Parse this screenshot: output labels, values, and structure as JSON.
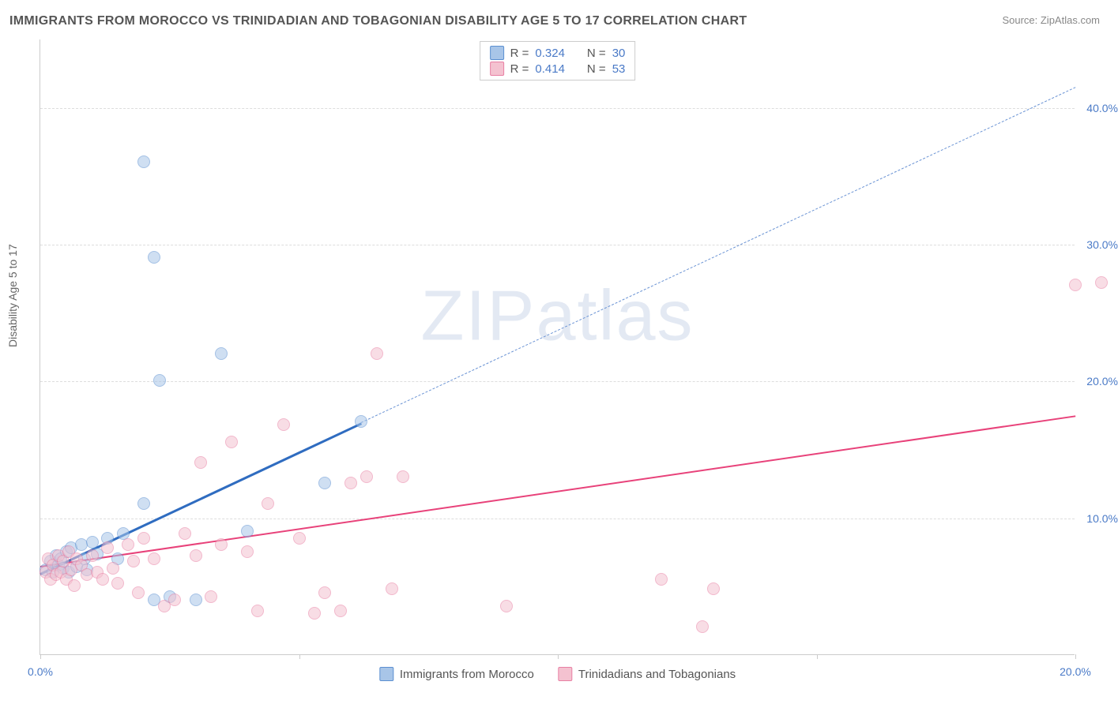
{
  "title": "IMMIGRANTS FROM MOROCCO VS TRINIDADIAN AND TOBAGONIAN DISABILITY AGE 5 TO 17 CORRELATION CHART",
  "source_label": "Source: ZipAtlas.com",
  "y_axis_label": "Disability Age 5 to 17",
  "watermark": "ZIPatlas",
  "chart": {
    "type": "scatter",
    "xlim": [
      0,
      20
    ],
    "ylim": [
      0,
      45
    ],
    "x_ticks": [
      0,
      5,
      10,
      15,
      20
    ],
    "x_tick_labels": [
      "0.0%",
      "",
      "",
      "",
      "20.0%"
    ],
    "y_ticks": [
      10,
      20,
      30,
      40
    ],
    "y_tick_labels": [
      "10.0%",
      "20.0%",
      "30.0%",
      "40.0%"
    ],
    "grid_color": "#dddddd",
    "background_color": "#ffffff",
    "axis_color": "#cccccc",
    "point_radius": 8,
    "point_opacity": 0.55,
    "series": [
      {
        "name": "Immigrants from Morocco",
        "color_fill": "#a8c5e8",
        "color_stroke": "#5b8fd1",
        "R": 0.324,
        "N": 30,
        "trend_color": "#2f6cc0",
        "trend_dashed_color": "#6a93d4",
        "trend_start": [
          0,
          6.0
        ],
        "trend_solid_end": [
          6.2,
          17.0
        ],
        "trend_dashed_end": [
          20,
          41.5
        ],
        "points": [
          [
            0.1,
            6.2
          ],
          [
            0.2,
            6.8
          ],
          [
            0.25,
            6.0
          ],
          [
            0.3,
            7.2
          ],
          [
            0.35,
            6.5
          ],
          [
            0.4,
            7.0
          ],
          [
            0.45,
            6.3
          ],
          [
            0.5,
            7.5
          ],
          [
            0.55,
            6.0
          ],
          [
            0.6,
            7.8
          ],
          [
            0.7,
            6.4
          ],
          [
            0.8,
            8.0
          ],
          [
            0.85,
            7.0
          ],
          [
            0.9,
            6.2
          ],
          [
            1.0,
            8.2
          ],
          [
            1.1,
            7.3
          ],
          [
            1.3,
            8.5
          ],
          [
            1.5,
            7.0
          ],
          [
            1.6,
            8.8
          ],
          [
            2.0,
            11.0
          ],
          [
            2.2,
            4.0
          ],
          [
            2.3,
            20.0
          ],
          [
            2.0,
            36.0
          ],
          [
            2.2,
            29.0
          ],
          [
            2.5,
            4.2
          ],
          [
            3.0,
            4.0
          ],
          [
            3.5,
            22.0
          ],
          [
            4.0,
            9.0
          ],
          [
            5.5,
            12.5
          ],
          [
            6.2,
            17.0
          ]
        ]
      },
      {
        "name": "Trinidadians and Tobagonians",
        "color_fill": "#f4c2d0",
        "color_stroke": "#e87fa3",
        "R": 0.414,
        "N": 53,
        "trend_color": "#e8427a",
        "trend_start": [
          0,
          6.5
        ],
        "trend_solid_end": [
          20,
          17.5
        ],
        "points": [
          [
            0.1,
            6.0
          ],
          [
            0.15,
            7.0
          ],
          [
            0.2,
            5.5
          ],
          [
            0.25,
            6.5
          ],
          [
            0.3,
            5.8
          ],
          [
            0.35,
            7.2
          ],
          [
            0.4,
            6.0
          ],
          [
            0.45,
            6.8
          ],
          [
            0.5,
            5.5
          ],
          [
            0.55,
            7.5
          ],
          [
            0.6,
            6.2
          ],
          [
            0.65,
            5.0
          ],
          [
            0.7,
            7.0
          ],
          [
            0.8,
            6.5
          ],
          [
            0.9,
            5.8
          ],
          [
            1.0,
            7.2
          ],
          [
            1.1,
            6.0
          ],
          [
            1.2,
            5.5
          ],
          [
            1.3,
            7.8
          ],
          [
            1.4,
            6.3
          ],
          [
            1.5,
            5.2
          ],
          [
            1.7,
            8.0
          ],
          [
            1.8,
            6.8
          ],
          [
            1.9,
            4.5
          ],
          [
            2.0,
            8.5
          ],
          [
            2.2,
            7.0
          ],
          [
            2.4,
            3.5
          ],
          [
            2.6,
            4.0
          ],
          [
            2.8,
            8.8
          ],
          [
            3.0,
            7.2
          ],
          [
            3.1,
            14.0
          ],
          [
            3.3,
            4.2
          ],
          [
            3.5,
            8.0
          ],
          [
            3.7,
            15.5
          ],
          [
            4.0,
            7.5
          ],
          [
            4.2,
            3.2
          ],
          [
            4.4,
            11.0
          ],
          [
            4.7,
            16.8
          ],
          [
            5.0,
            8.5
          ],
          [
            5.3,
            3.0
          ],
          [
            5.5,
            4.5
          ],
          [
            5.8,
            3.2
          ],
          [
            6.0,
            12.5
          ],
          [
            6.3,
            13.0
          ],
          [
            6.5,
            22.0
          ],
          [
            6.8,
            4.8
          ],
          [
            7.0,
            13.0
          ],
          [
            9.0,
            3.5
          ],
          [
            12.0,
            5.5
          ],
          [
            12.8,
            2.0
          ],
          [
            13.0,
            4.8
          ],
          [
            20.0,
            27.0
          ],
          [
            20.5,
            27.2
          ]
        ]
      }
    ],
    "legend_top": [
      {
        "swatch_fill": "#a8c5e8",
        "swatch_stroke": "#5b8fd1",
        "R_label": "R =",
        "R_val": "0.324",
        "N_label": "N =",
        "N_val": "30"
      },
      {
        "swatch_fill": "#f4c2d0",
        "swatch_stroke": "#e87fa3",
        "R_label": "R =",
        "R_val": "0.414",
        "N_label": "N =",
        "N_val": "53"
      }
    ],
    "legend_bottom": [
      {
        "swatch_fill": "#a8c5e8",
        "swatch_stroke": "#5b8fd1",
        "label": "Immigrants from Morocco"
      },
      {
        "swatch_fill": "#f4c2d0",
        "swatch_stroke": "#e87fa3",
        "label": "Trinidadians and Tobagonians"
      }
    ]
  }
}
